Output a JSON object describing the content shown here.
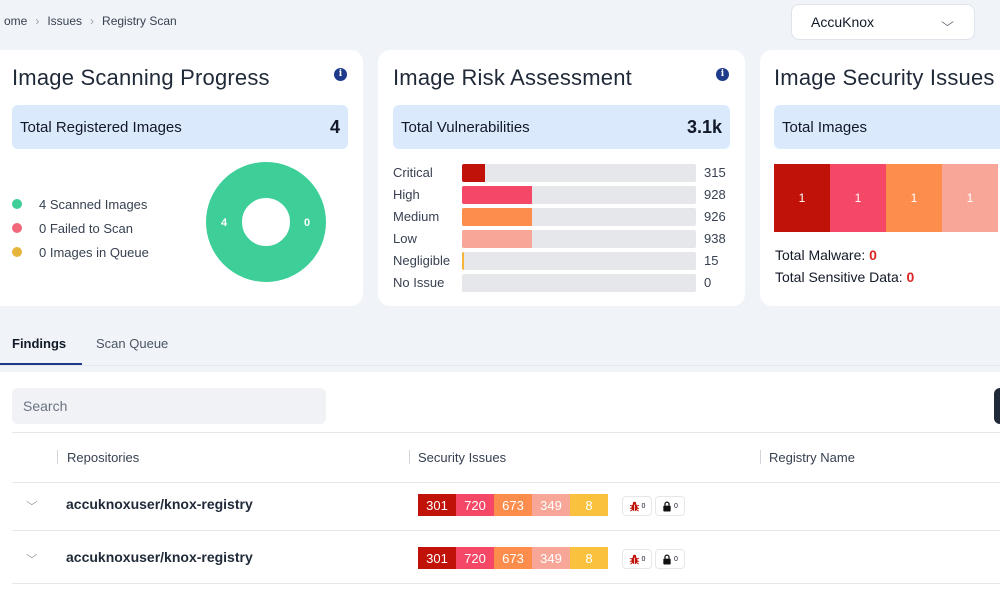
{
  "breadcrumb": {
    "home": "ome",
    "issues": "Issues",
    "current": "Registry Scan"
  },
  "org_selector": {
    "value": "AccuKnox"
  },
  "scan_progress": {
    "title": "Image Scanning Progress",
    "total_label": "Total Registered Images",
    "total_value": "4",
    "legend": [
      {
        "label": "4 Scanned Images",
        "color": "#3ecf98"
      },
      {
        "label": "0 Failed to Scan",
        "color": "#f2677a"
      },
      {
        "label": "0 Images in Queue",
        "color": "#e6b53c"
      }
    ],
    "donut": {
      "scanned": 4,
      "failed": 0,
      "queue": 0,
      "left_label": "4",
      "right_label": "0"
    }
  },
  "risk_assessment": {
    "title": "Image Risk Assessment",
    "total_label": "Total Vulnerabilities",
    "total_value": "3.1k",
    "rows": [
      {
        "label": "Critical",
        "value": "315",
        "fraction": 0.1,
        "color": "#c1120a"
      },
      {
        "label": "High",
        "value": "928",
        "fraction": 0.3,
        "color": "#f44866"
      },
      {
        "label": "Medium",
        "value": "926",
        "fraction": 0.3,
        "color": "#fd8d4c"
      },
      {
        "label": "Low",
        "value": "938",
        "fraction": 0.3,
        "color": "#f8a698"
      },
      {
        "label": "Negligible",
        "value": "15",
        "fraction": 0.006,
        "color": "#f6b538"
      },
      {
        "label": "No Issue",
        "value": "0",
        "fraction": 0,
        "color": "#9ca3af"
      }
    ]
  },
  "security_issues": {
    "title": "Image Security Issues",
    "total_label": "Total Images",
    "grid": [
      {
        "value": "1",
        "color": "#c1120a"
      },
      {
        "value": "1",
        "color": "#f44866"
      },
      {
        "value": "1",
        "color": "#fd8d4c"
      },
      {
        "value": "1",
        "color": "#f8a698"
      }
    ],
    "malware_label": "Total Malware: ",
    "malware_value": "0",
    "sensitive_label": "Total Sensitive Data: ",
    "sensitive_value": "0"
  },
  "tabs": [
    {
      "label": "Findings"
    },
    {
      "label": "Scan Queue"
    }
  ],
  "search": {
    "placeholder": "Search"
  },
  "table": {
    "headers": {
      "repositories": "Repositories",
      "security_issues": "Security Issues",
      "registry_name": "Registry Name"
    },
    "rows": [
      {
        "repository": "accuknoxuser/knox-registry",
        "severities": [
          {
            "value": "301",
            "color": "#c1120a"
          },
          {
            "value": "720",
            "color": "#f44866"
          },
          {
            "value": "673",
            "color": "#fd8d4c"
          },
          {
            "value": "349",
            "color": "#f8a698"
          },
          {
            "value": "8",
            "color": "#f9c13e"
          }
        ],
        "malware_count": "0",
        "sensitive_count": "0"
      },
      {
        "repository": "accuknoxuser/knox-registry",
        "severities": [
          {
            "value": "301",
            "color": "#c1120a"
          },
          {
            "value": "720",
            "color": "#f44866"
          },
          {
            "value": "673",
            "color": "#fd8d4c"
          },
          {
            "value": "349",
            "color": "#f8a698"
          },
          {
            "value": "8",
            "color": "#f9c13e"
          }
        ],
        "malware_count": "0",
        "sensitive_count": "0"
      }
    ]
  }
}
